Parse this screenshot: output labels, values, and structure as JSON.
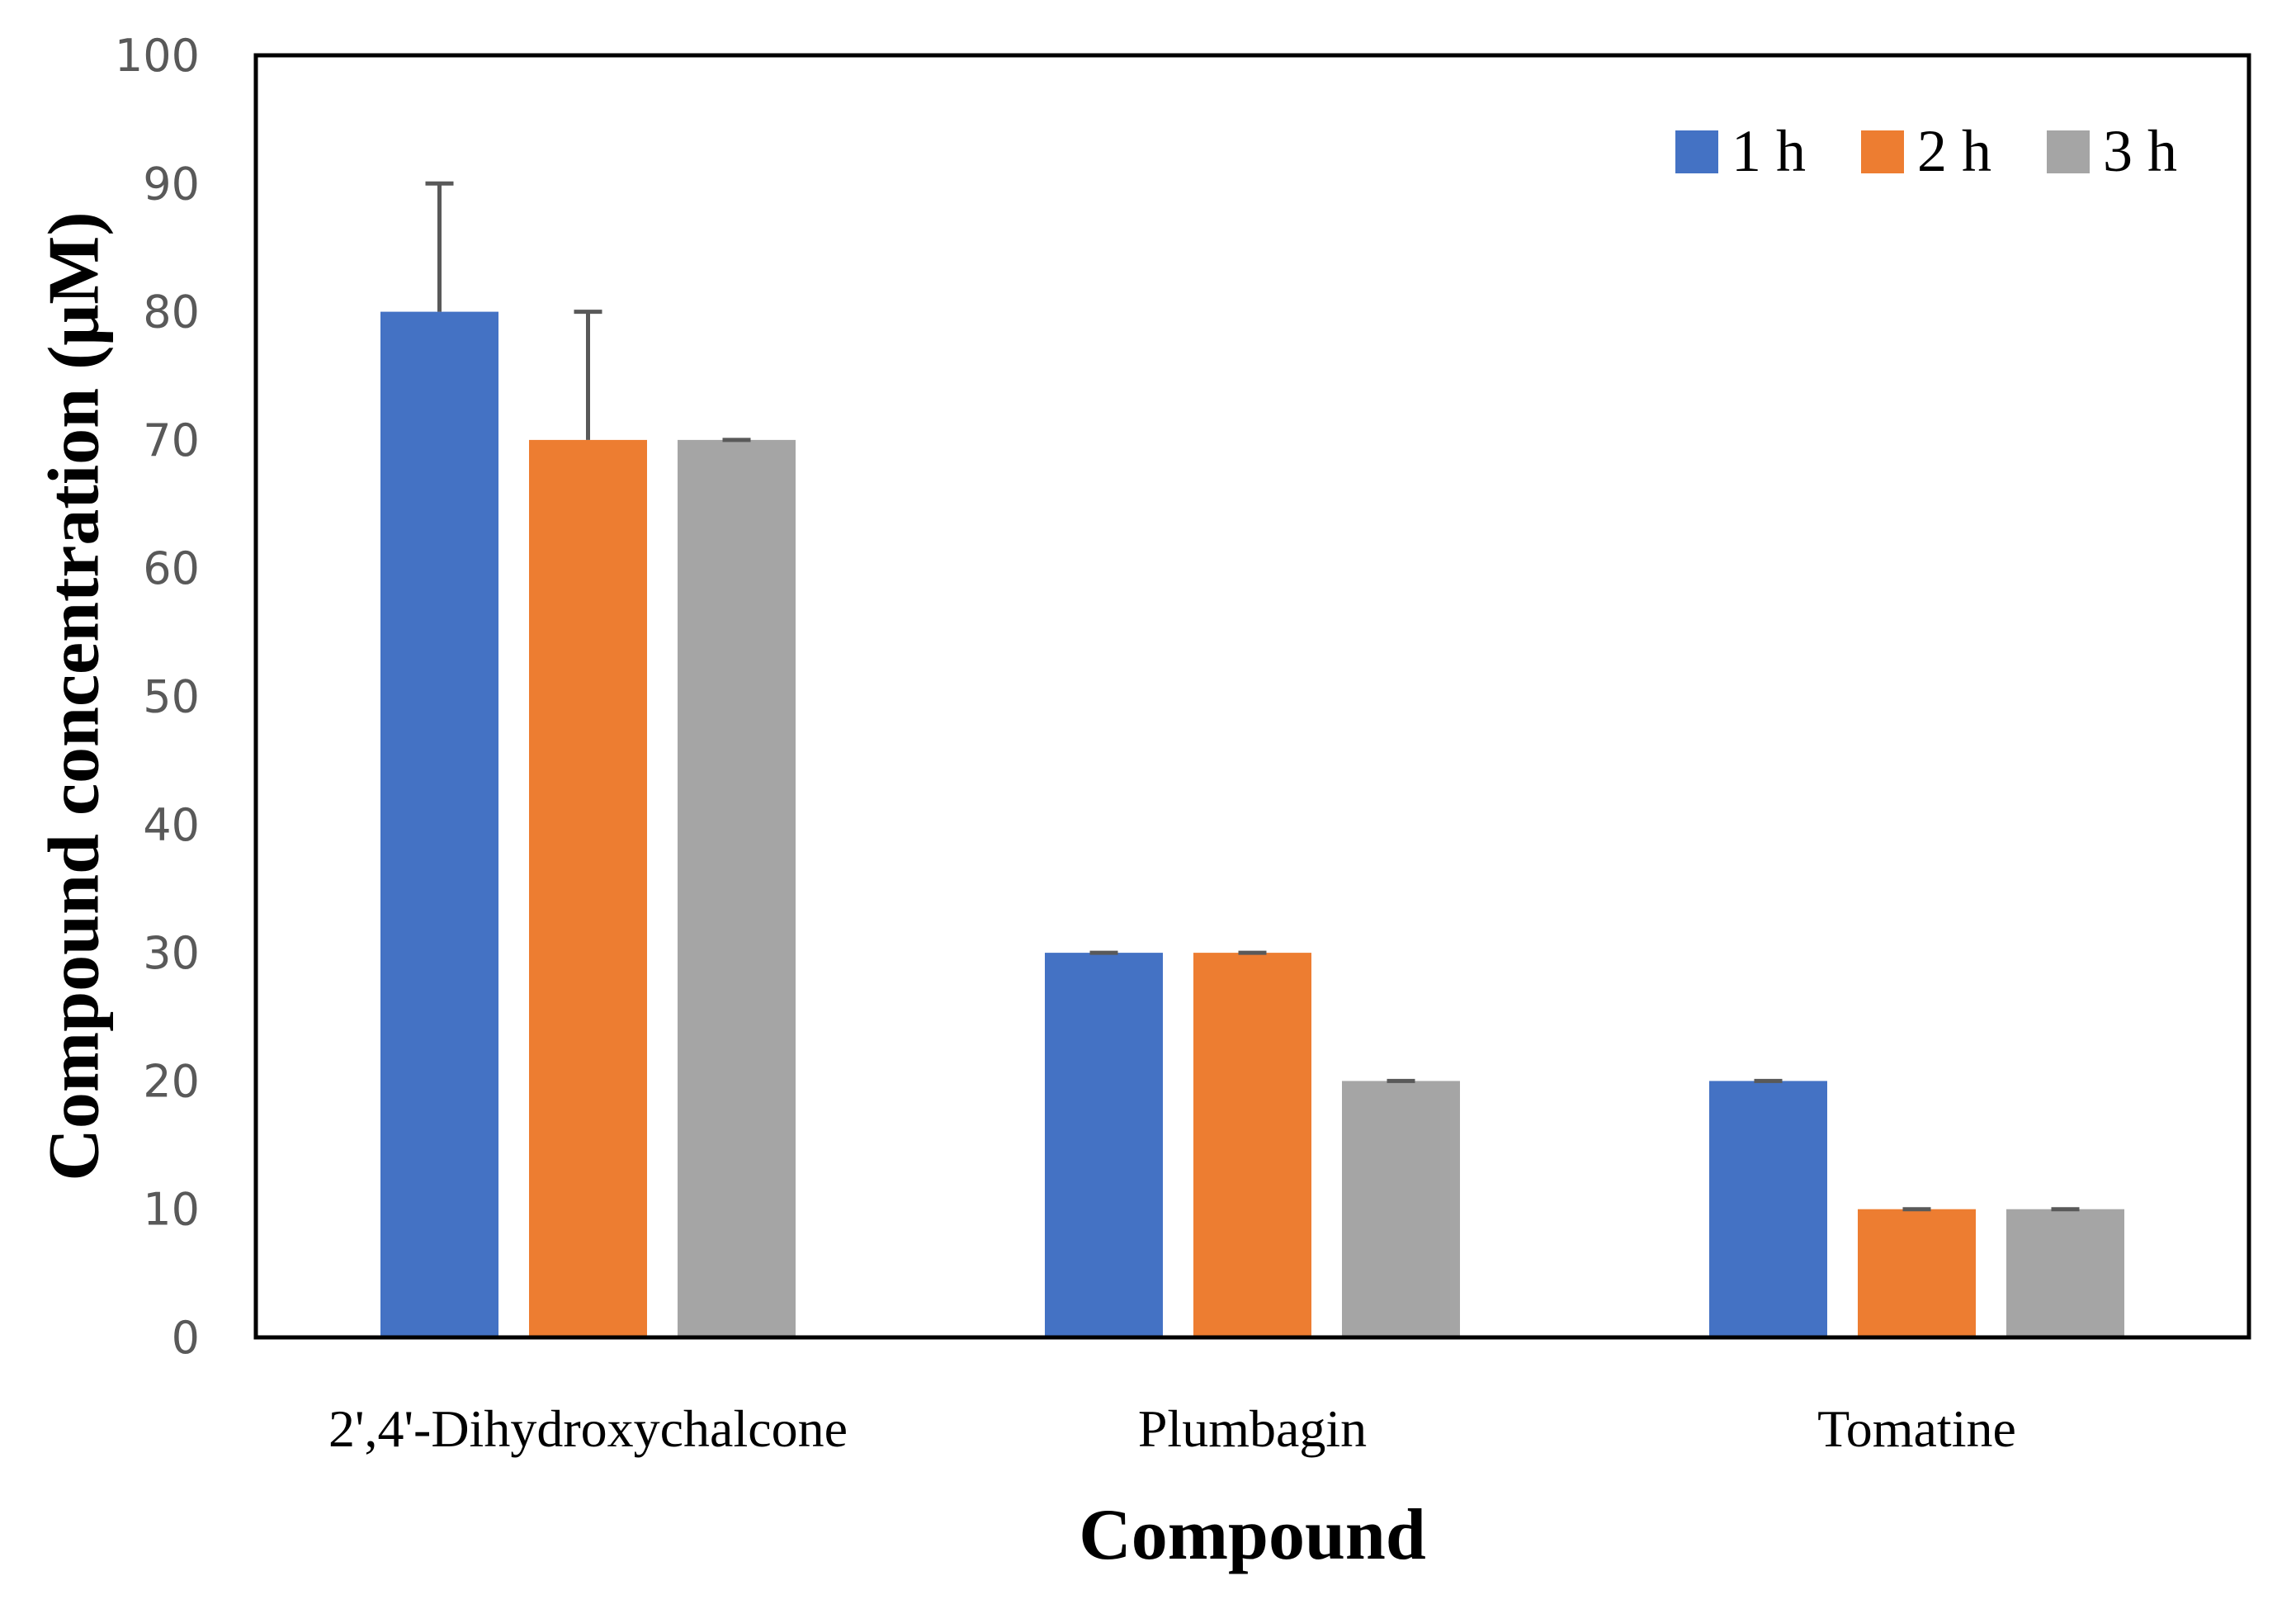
{
  "chart_data": {
    "type": "bar",
    "title": "",
    "xlabel": "Compound",
    "ylabel": "Compound concentration (μM)",
    "categories": [
      "2',4'-Dihydroxychalcone",
      "Plumbagin",
      "Tomatine"
    ],
    "series": [
      {
        "name": "1 h",
        "color": "#4472C4",
        "values": [
          80,
          30,
          20
        ],
        "error": [
          10,
          0,
          0
        ]
      },
      {
        "name": "2 h",
        "color": "#ED7D31",
        "values": [
          70,
          30,
          10
        ],
        "error": [
          10,
          0,
          0
        ]
      },
      {
        "name": "3 h",
        "color": "#A5A5A5",
        "values": [
          70,
          20,
          10
        ],
        "error": [
          0,
          0,
          0
        ]
      }
    ],
    "ylim": [
      0,
      100
    ],
    "yticks": [
      "0",
      "10",
      "20",
      "30",
      "40",
      "50",
      "60",
      "70",
      "80",
      "90",
      "100"
    ],
    "grid": false,
    "legend": "top-right"
  }
}
